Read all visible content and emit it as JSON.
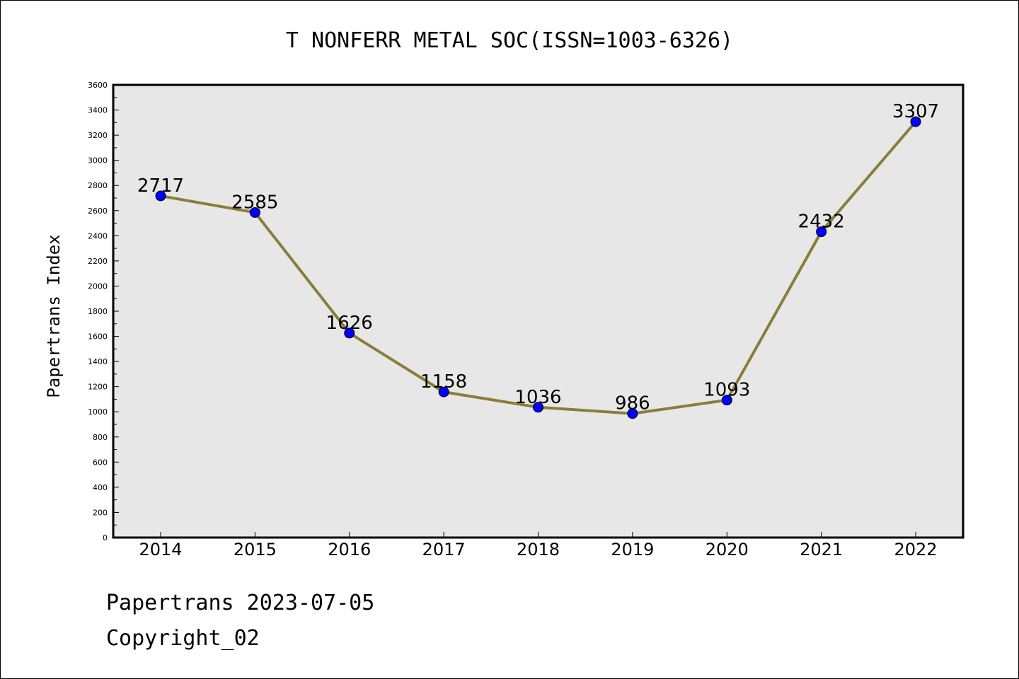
{
  "chart_data": {
    "type": "line",
    "title": "T NONFERR METAL SOC(ISSN=1003-6326)",
    "xlabel": "",
    "ylabel": "Papertrans Index",
    "categories": [
      "2014",
      "2015",
      "2016",
      "2017",
      "2018",
      "2019",
      "2020",
      "2021",
      "2022"
    ],
    "series": [
      {
        "values": [
          2717,
          2585,
          1626,
          1158,
          1036,
          986,
          1093,
          2432,
          3307
        ]
      }
    ],
    "data_labels": [
      "2717",
      "2585",
      "1626",
      "1158",
      "1036",
      "986",
      "1093",
      "2432",
      "3307"
    ],
    "ylim": [
      0,
      3600
    ],
    "yticks": [
      0,
      200,
      400,
      600,
      800,
      1000,
      1200,
      1400,
      1600,
      1800,
      2000,
      2200,
      2400,
      2600,
      2800,
      3000,
      3200,
      3400,
      3600
    ],
    "grid": false,
    "legend": "none",
    "colors": {
      "line": "#8B7D3A",
      "marker": "#0000FF",
      "plot_bg": "#E7E7E7"
    }
  },
  "footer": {
    "date_line": "Papertrans 2023-07-05",
    "copyright": "Copyright_02"
  }
}
